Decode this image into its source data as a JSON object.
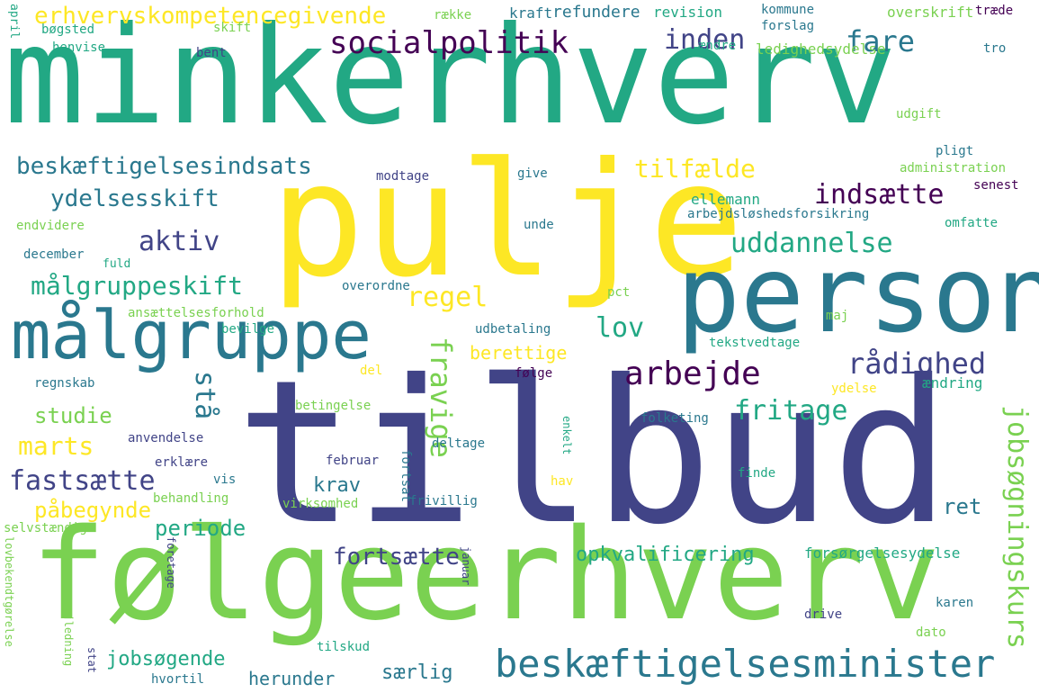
{
  "words": [
    "minkerhverv",
    "pulje",
    "tilbud",
    "følgeerhverv",
    "person",
    "målgruppe",
    "socialpolitik",
    "erhvervskompetencegivende",
    "fare",
    "inden",
    "beskæftigelsesindsats",
    "tilfælde",
    "ydelsesskift",
    "indsætte",
    "aktiv",
    "uddannelse",
    "målgruppeskift",
    "regel",
    "lov",
    "arbejde",
    "rådighed",
    "beskæftigelsesminister",
    "stå",
    "fravige",
    "fritage",
    "jobsøgningskurs",
    "studie",
    "marts",
    "fastsætte",
    "krav",
    "påbegynde",
    "periode",
    "fortsætte",
    "ret",
    "opkvalificering",
    "jobsøgende",
    "særlig",
    "herunder",
    "berettige",
    "række",
    "kraft",
    "refundere",
    "revision",
    "kommune",
    "forslag",
    "overskrift",
    "træde",
    "april",
    "bøgsted",
    "skift",
    "henvise",
    "ændre",
    "ledighedsydelse",
    "tro",
    "bent",
    "udgift",
    "pligt",
    "administration",
    "senest",
    "modtage",
    "give",
    "ellemann",
    "arbejdsløshedsforsikring",
    "omfatte",
    "endvidere",
    "december",
    "fuld",
    "unde",
    "overordne",
    "pct",
    "ansættelsesforhold",
    "bevilge",
    "maj",
    "udbetaling",
    "tekstvedtage",
    "del",
    "følge",
    "regnskab",
    "ydelse",
    "ændring",
    "betingelse",
    "folketing",
    "anvendelse",
    "enkelt",
    "deltage",
    "erklære",
    "februar",
    "fortsat",
    "vis",
    "behandling",
    "finde",
    "hav",
    "virksomhed",
    "frivillig",
    "selvstændig",
    "forsørgelsesydelse",
    "lovbekendtgørelse",
    "januar",
    "foretage",
    "karen",
    "drive",
    "dato",
    "vejledning",
    "stat",
    "hvortil",
    "tilskud"
  ],
  "palette": {
    "background": "#ffffff",
    "yellow": "#fde725",
    "lime": "#7ad151",
    "green": "#22a884",
    "teal": "#2a788e",
    "blue": "#414487",
    "purple": "#440154"
  }
}
